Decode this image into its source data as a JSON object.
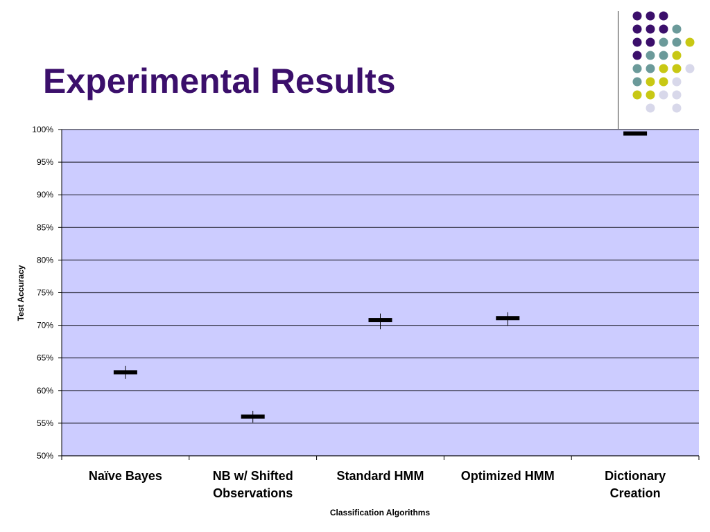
{
  "slide": {
    "title": "Experimental Results"
  },
  "decoration": {
    "dot_colors": {
      "purple": "#3b0f6b",
      "teal": "#6b9a9a",
      "yellow": "#c8c814",
      "lavender": "#d8d8ea"
    }
  },
  "chart_data": {
    "type": "stock-hlc",
    "categories": [
      "Naïve Bayes",
      "NB w/ Shifted Observations",
      "Standard HMM",
      "Optimized HMM",
      "Dictionary Creation"
    ],
    "category_lines": [
      [
        "Naïve Bayes"
      ],
      [
        "NB w/ Shifted",
        "Observations"
      ],
      [
        "Standard HMM"
      ],
      [
        "Optimized HMM"
      ],
      [
        "Dictionary",
        "Creation"
      ]
    ],
    "series": [
      {
        "high": [
          63.8,
          56.9,
          71.8,
          72.0,
          99.6
        ],
        "low": [
          61.8,
          55.1,
          69.4,
          69.9,
          99.2
        ],
        "mean": [
          62.8,
          56.0,
          70.8,
          71.1,
          99.4
        ]
      }
    ],
    "ylim": [
      50,
      100
    ],
    "yticks": [
      "50%",
      "55%",
      "60%",
      "65%",
      "70%",
      "75%",
      "80%",
      "85%",
      "90%",
      "95%",
      "100%"
    ],
    "xlabel": "Classification Algorithms",
    "ylabel": "Test Accuracy",
    "grid": true,
    "plot_background": "#ccccff",
    "grid_color": "#333344",
    "mark_color": "#000000"
  }
}
